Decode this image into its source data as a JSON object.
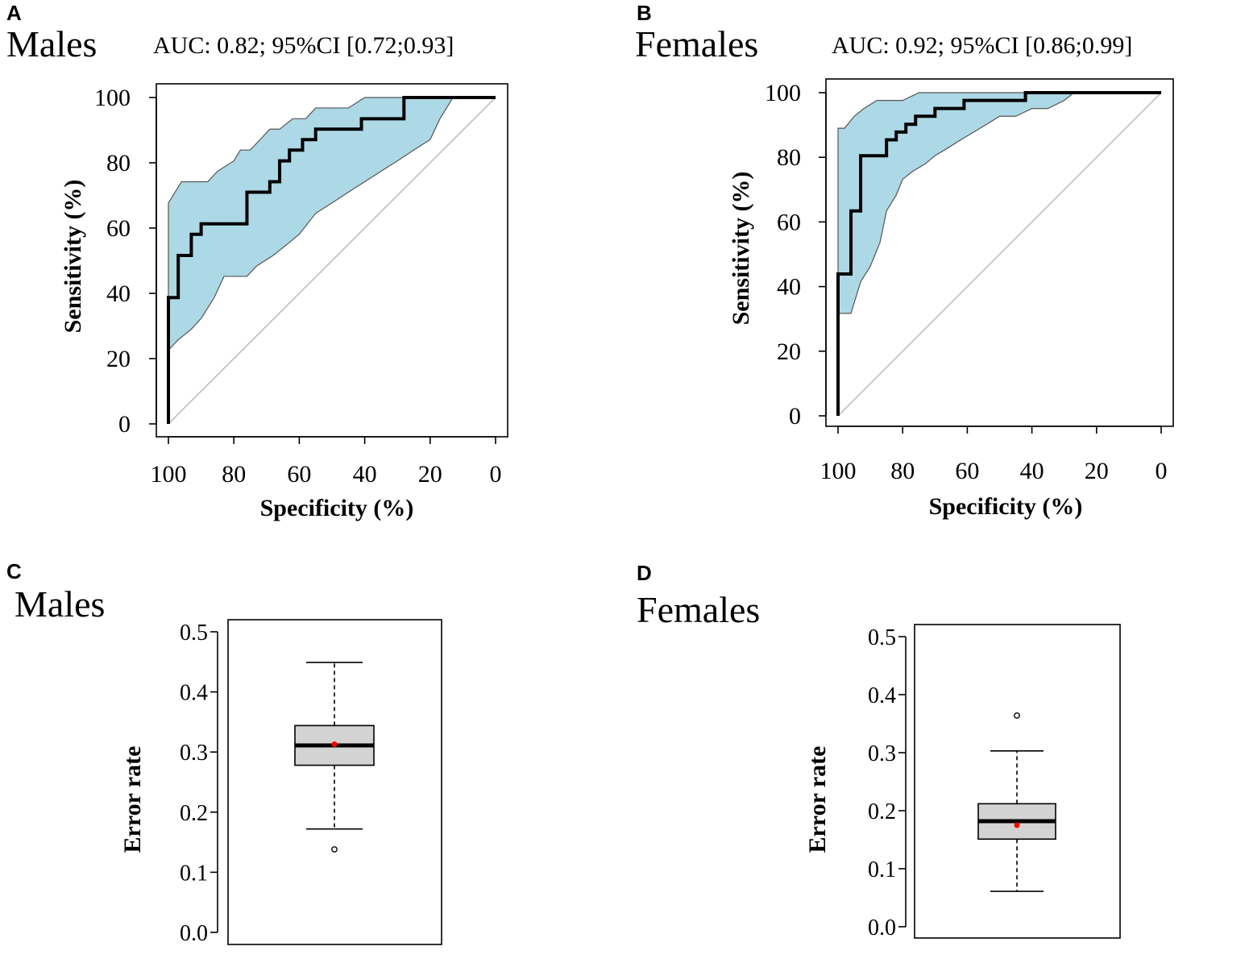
{
  "colors": {
    "ci_fill": "#add8e6",
    "ci_stroke": "#555555",
    "roc_line": "#000000",
    "diagonal": "#bebebe",
    "box_fill": "#d3d3d3",
    "mean_point": "#ff0000"
  },
  "chart_data": [
    {
      "panel": "A",
      "type": "line",
      "title": "Males",
      "subtitle": "AUC: 0.82; 95%CI [0.72;0.93]",
      "xlabel": "Specificity (%)",
      "ylabel": "Sensitivity (%)",
      "xlim": [
        100,
        0
      ],
      "ylim": [
        0,
        100
      ],
      "xticks": [
        100,
        80,
        60,
        40,
        20,
        0
      ],
      "yticks": [
        0,
        20,
        40,
        60,
        80,
        100
      ],
      "series": [
        {
          "name": "ROC",
          "x": [
            100,
            100,
            97,
            97,
            93,
            93,
            90,
            90,
            76,
            76,
            69,
            69,
            66,
            66,
            63,
            63,
            59,
            59,
            55,
            55,
            52,
            52,
            41,
            41,
            28,
            28,
            0
          ],
          "y": [
            0,
            38.7,
            38.7,
            51.6,
            51.6,
            58.1,
            58.1,
            61.3,
            61.3,
            71,
            71,
            74.2,
            74.2,
            80.6,
            80.6,
            83.9,
            83.9,
            87.1,
            87.1,
            90.3,
            90.3,
            90.3,
            90.3,
            93.5,
            93.5,
            100,
            100
          ]
        },
        {
          "name": "CI upper",
          "x": [
            100,
            100,
            96,
            92,
            88,
            85,
            80,
            78,
            75,
            72,
            69,
            66,
            62,
            58,
            55,
            50,
            45,
            40,
            35,
            30,
            25,
            20,
            17,
            13
          ],
          "y": [
            22.6,
            67.7,
            74.2,
            74.2,
            74.2,
            77.4,
            80.6,
            83.9,
            83.9,
            87.1,
            90.3,
            90.3,
            93.5,
            93.5,
            96.8,
            96.8,
            96.8,
            100,
            100,
            100,
            100,
            100,
            100,
            100
          ]
        },
        {
          "name": "CI lower",
          "x": [
            100,
            97,
            93,
            90,
            86,
            83,
            80,
            76,
            73,
            68,
            64,
            60,
            55,
            50,
            45,
            40,
            35,
            30,
            25,
            20,
            17,
            13
          ],
          "y": [
            22.6,
            25.8,
            29,
            32.3,
            38.7,
            45.2,
            45.2,
            45.2,
            48.4,
            51.6,
            54.8,
            58.1,
            64.5,
            67.7,
            71,
            74.2,
            77.4,
            80.6,
            83.9,
            87.1,
            93.5,
            100
          ]
        }
      ],
      "diagonal": [
        [
          100,
          0
        ],
        [
          0,
          100
        ]
      ]
    },
    {
      "panel": "B",
      "type": "line",
      "title": "Females",
      "subtitle": "AUC: 0.92; 95%CI [0.86;0.99]",
      "xlabel": "Specificity (%)",
      "ylabel": "Sensitivity (%)",
      "xlim": [
        100,
        0
      ],
      "ylim": [
        0,
        100
      ],
      "xticks": [
        100,
        80,
        60,
        40,
        20,
        0
      ],
      "yticks": [
        0,
        20,
        40,
        60,
        80,
        100
      ],
      "series": [
        {
          "name": "ROC",
          "x": [
            100,
            100,
            96,
            96,
            93,
            93,
            85,
            85,
            82,
            82,
            79,
            79,
            76,
            76,
            73,
            73,
            70,
            70,
            66,
            66,
            61,
            61,
            57,
            57,
            42,
            42,
            0
          ],
          "y": [
            0,
            43.9,
            43.9,
            63.4,
            63.4,
            80.5,
            80.5,
            85.4,
            85.4,
            87.8,
            87.8,
            90.2,
            90.2,
            92.7,
            92.7,
            92.7,
            92.7,
            95.1,
            95.1,
            95.1,
            95.1,
            97.6,
            97.6,
            97.6,
            97.6,
            100,
            100
          ]
        },
        {
          "name": "CI upper",
          "x": [
            100,
            100,
            98,
            95,
            92,
            88,
            85,
            80,
            75,
            70,
            65,
            60,
            55,
            50,
            45,
            40,
            35,
            30,
            27
          ],
          "y": [
            31.7,
            89,
            89,
            92.7,
            95.1,
            97.6,
            97.6,
            97.6,
            100,
            100,
            100,
            100,
            100,
            100,
            100,
            100,
            100,
            100,
            100
          ]
        },
        {
          "name": "CI lower",
          "x": [
            100,
            96,
            93,
            90,
            87,
            85,
            82,
            80,
            77,
            73,
            70,
            66,
            62,
            58,
            54,
            50,
            45,
            40,
            35,
            30,
            27
          ],
          "y": [
            31.7,
            31.7,
            41.5,
            46.3,
            53.7,
            63.4,
            68.3,
            73.2,
            75.6,
            78,
            80.5,
            82.9,
            85.4,
            87.8,
            90.2,
            92.7,
            92.7,
            95.1,
            95.1,
            97.6,
            100
          ]
        }
      ],
      "diagonal": [
        [
          100,
          0
        ],
        [
          0,
          100
        ]
      ]
    },
    {
      "panel": "C",
      "type": "box",
      "title": "Males",
      "ylabel": "Error rate",
      "ylim": [
        0,
        0.5
      ],
      "yticks": [
        "0.0",
        "0.1",
        "0.2",
        "0.3",
        "0.4",
        "0.5"
      ],
      "whisker_low": 0.172,
      "q1": 0.278,
      "median": 0.311,
      "q3": 0.344,
      "whisker_high": 0.449,
      "mean": 0.313,
      "outliers": [
        0.138
      ]
    },
    {
      "panel": "D",
      "type": "box",
      "title": "Females",
      "ylabel": "Error rate",
      "ylim": [
        0,
        0.5
      ],
      "yticks": [
        "0.0",
        "0.1",
        "0.2",
        "0.3",
        "0.4",
        "0.5"
      ],
      "whisker_low": 0.061,
      "q1": 0.151,
      "median": 0.182,
      "q3": 0.212,
      "whisker_high": 0.303,
      "mean": 0.175,
      "outliers": [
        0.364
      ]
    }
  ]
}
